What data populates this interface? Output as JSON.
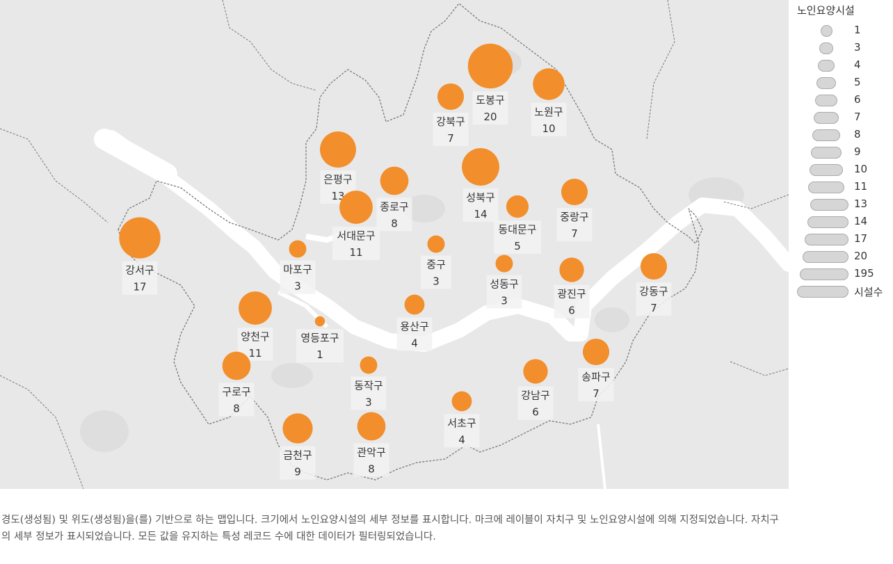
{
  "legend": {
    "title": "노인요양시설",
    "items": [
      "1",
      "3",
      "4",
      "5",
      "6",
      "7",
      "8",
      "9",
      "10",
      "11",
      "13",
      "14",
      "17",
      "20",
      "195",
      "시설수"
    ]
  },
  "colors": {
    "marker": "#f28e2b",
    "land": "#e8e8e8",
    "river": "#ffffff",
    "boundary": "#777777",
    "label_bg": "#f2f2f2"
  },
  "districts": [
    {
      "name": "도봉구",
      "value": "20"
    },
    {
      "name": "강북구",
      "value": "7"
    },
    {
      "name": "노원구",
      "value": "10"
    },
    {
      "name": "은평구",
      "value": "13"
    },
    {
      "name": "종로구",
      "value": "8"
    },
    {
      "name": "성북구",
      "value": "14"
    },
    {
      "name": "중랑구",
      "value": "7"
    },
    {
      "name": "서대문구",
      "value": "11"
    },
    {
      "name": "동대문구",
      "value": "5"
    },
    {
      "name": "강서구",
      "value": "17"
    },
    {
      "name": "마포구",
      "value": "3"
    },
    {
      "name": "중구",
      "value": "3"
    },
    {
      "name": "성동구",
      "value": "3"
    },
    {
      "name": "광진구",
      "value": "6"
    },
    {
      "name": "강동구",
      "value": "7"
    },
    {
      "name": "양천구",
      "value": "11"
    },
    {
      "name": "영등포구",
      "value": "1"
    },
    {
      "name": "용산구",
      "value": "4"
    },
    {
      "name": "구로구",
      "value": "8"
    },
    {
      "name": "동작구",
      "value": "3"
    },
    {
      "name": "송파구",
      "value": "7"
    },
    {
      "name": "강남구",
      "value": "6"
    },
    {
      "name": "서초구",
      "value": "4"
    },
    {
      "name": "금천구",
      "value": "9"
    },
    {
      "name": "관악구",
      "value": "8"
    }
  ],
  "caption": "경도(생성됨) 및 위도(생성됨)을(를) 기반으로 하는 맵입니다. 크기에서 노인요양시설의 세부 정보를 표시합니다. 마크에 레이블이 자치구 및 노인요양시설에 의해 지정되었습니다. 자치구의 세부 정보가 표시되었습니다. 모든 값을 유지하는 특성 레코드 수에 대한 데이터가 필터링되었습니다."
}
